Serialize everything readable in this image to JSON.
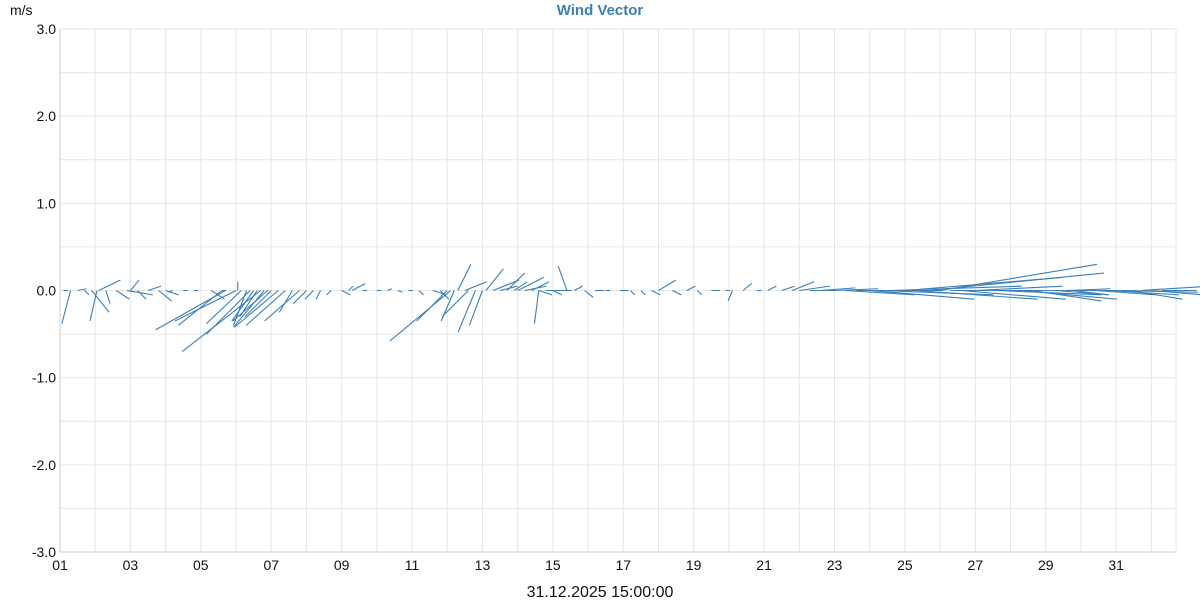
{
  "chart_data": {
    "type": "vector",
    "title": "Wind Vector",
    "ylabel": "m/s",
    "footer_label": "31.12.2025 15:00:00",
    "color": "#3a7fb8",
    "grid": true,
    "xlim": [
      1,
      32.7
    ],
    "ylim": [
      -3.0,
      3.0
    ],
    "x_ticks": [
      "01",
      "03",
      "05",
      "07",
      "09",
      "11",
      "13",
      "15",
      "17",
      "19",
      "21",
      "23",
      "25",
      "27",
      "29",
      "31"
    ],
    "y_ticks": [
      "3.0",
      "2.0",
      "1.0",
      "0.0",
      "-1.0",
      "-2.0",
      "-3.0"
    ],
    "vectors": [
      {
        "x": 1.1,
        "u": 0.05,
        "v": 0.0
      },
      {
        "x": 1.3,
        "u": -0.1,
        "v": -0.38
      },
      {
        "x": 1.5,
        "u": 0.1,
        "v": 0.02
      },
      {
        "x": 1.7,
        "u": 0.05,
        "v": -0.05
      },
      {
        "x": 1.9,
        "u": 0.2,
        "v": -0.25
      },
      {
        "x": 2.05,
        "u": -0.08,
        "v": -0.35
      },
      {
        "x": 2.1,
        "u": 0.25,
        "v": 0.12
      },
      {
        "x": 2.3,
        "u": 0.05,
        "v": -0.15
      },
      {
        "x": 2.6,
        "u": 0.15,
        "v": -0.1
      },
      {
        "x": 2.9,
        "u": 0.3,
        "v": -0.05
      },
      {
        "x": 3.0,
        "u": 0.1,
        "v": 0.12
      },
      {
        "x": 3.2,
        "u": 0.1,
        "v": -0.1
      },
      {
        "x": 3.5,
        "u": 0.15,
        "v": 0.05
      },
      {
        "x": 3.8,
        "u": 0.15,
        "v": -0.12
      },
      {
        "x": 4.0,
        "u": 0.15,
        "v": -0.05
      },
      {
        "x": 4.2,
        "u": -0.05,
        "v": -0.02
      },
      {
        "x": 4.5,
        "u": 0.05,
        "v": 0.0
      },
      {
        "x": 4.8,
        "u": 0.05,
        "v": 0.0
      },
      {
        "x": 5.3,
        "u": 0.15,
        "v": -0.1
      },
      {
        "x": 5.6,
        "u": 0.05,
        "v": 0.0
      },
      {
        "x": 5.6,
        "u": -0.5,
        "v": -0.4
      },
      {
        "x": 5.7,
        "u": -0.8,
        "v": -0.45
      },
      {
        "x": 6.0,
        "u": -0.7,
        "v": -0.35
      },
      {
        "x": 6.05,
        "u": 0.0,
        "v": 0.1
      },
      {
        "x": 6.15,
        "u": -0.4,
        "v": -0.38
      },
      {
        "x": 6.3,
        "u": -0.15,
        "v": -0.4
      },
      {
        "x": 6.4,
        "u": -0.5,
        "v": -0.5
      },
      {
        "x": 6.5,
        "u": -0.25,
        "v": -0.35
      },
      {
        "x": 6.6,
        "u": -0.2,
        "v": -0.3
      },
      {
        "x": 6.7,
        "u": -0.9,
        "v": -0.7
      },
      {
        "x": 6.8,
        "u": -0.35,
        "v": -0.42
      },
      {
        "x": 6.9,
        "u": -0.4,
        "v": -0.35
      },
      {
        "x": 7.0,
        "u": -0.3,
        "v": -0.3
      },
      {
        "x": 7.2,
        "u": -0.5,
        "v": -0.42
      },
      {
        "x": 7.4,
        "u": -0.45,
        "v": -0.4
      },
      {
        "x": 7.6,
        "u": -0.15,
        "v": -0.25
      },
      {
        "x": 7.8,
        "u": -0.4,
        "v": -0.35
      },
      {
        "x": 8.0,
        "u": -0.15,
        "v": -0.15
      },
      {
        "x": 8.2,
        "u": -0.1,
        "v": -0.1
      },
      {
        "x": 8.4,
        "u": -0.05,
        "v": -0.1
      },
      {
        "x": 8.7,
        "u": -0.05,
        "v": -0.05
      },
      {
        "x": 9.0,
        "u": 0.1,
        "v": -0.05
      },
      {
        "x": 9.2,
        "u": 0.05,
        "v": 0.05
      },
      {
        "x": 9.3,
        "u": 0.15,
        "v": 0.08
      },
      {
        "x": 9.6,
        "u": 0.05,
        "v": 0.0
      },
      {
        "x": 10.0,
        "u": 0.05,
        "v": 0.0
      },
      {
        "x": 10.3,
        "u": 0.05,
        "v": 0.02
      },
      {
        "x": 10.6,
        "u": 0.05,
        "v": -0.02
      },
      {
        "x": 10.9,
        "u": 0.05,
        "v": 0.0
      },
      {
        "x": 11.2,
        "u": 0.05,
        "v": -0.05
      },
      {
        "x": 11.6,
        "u": 0.15,
        "v": -0.05
      },
      {
        "x": 11.8,
        "u": 0.1,
        "v": -0.1
      },
      {
        "x": 12.0,
        "u": -0.35,
        "v": -0.35
      },
      {
        "x": 12.1,
        "u": -0.7,
        "v": -0.58
      },
      {
        "x": 12.2,
        "u": -0.15,
        "v": -0.35
      },
      {
        "x": 12.3,
        "u": 0.15,
        "v": 0.3
      },
      {
        "x": 12.5,
        "u": 0.25,
        "v": 0.1
      },
      {
        "x": 12.6,
        "u": -0.3,
        "v": -0.3
      },
      {
        "x": 12.8,
        "u": -0.2,
        "v": -0.48
      },
      {
        "x": 13.0,
        "u": -0.15,
        "v": -0.4
      },
      {
        "x": 13.1,
        "u": 0.2,
        "v": 0.25
      },
      {
        "x": 13.3,
        "u": 0.3,
        "v": 0.12
      },
      {
        "x": 13.5,
        "u": 0.2,
        "v": 0.05
      },
      {
        "x": 13.7,
        "u": 0.2,
        "v": 0.2
      },
      {
        "x": 13.9,
        "u": 0.15,
        "v": 0.1
      },
      {
        "x": 14.0,
        "u": 0.3,
        "v": 0.15
      },
      {
        "x": 14.2,
        "u": 0.25,
        "v": 0.05
      },
      {
        "x": 14.4,
        "u": 0.2,
        "v": 0.1
      },
      {
        "x": 14.6,
        "u": 0.15,
        "v": -0.05
      },
      {
        "x": 14.6,
        "u": -0.05,
        "v": -0.38
      },
      {
        "x": 14.8,
        "u": 0.3,
        "v": 0.0
      },
      {
        "x": 15.0,
        "u": 0.1,
        "v": -0.05
      },
      {
        "x": 15.4,
        "u": -0.1,
        "v": 0.28
      },
      {
        "x": 15.6,
        "u": 0.1,
        "v": 0.05
      },
      {
        "x": 15.9,
        "u": 0.1,
        "v": -0.08
      },
      {
        "x": 16.2,
        "u": 0.1,
        "v": 0.0
      },
      {
        "x": 16.5,
        "u": 0.05,
        "v": 0.0
      },
      {
        "x": 16.9,
        "u": 0.1,
        "v": 0.0
      },
      {
        "x": 17.2,
        "u": 0.05,
        "v": -0.05
      },
      {
        "x": 17.5,
        "u": 0.05,
        "v": -0.05
      },
      {
        "x": 17.8,
        "u": 0.1,
        "v": -0.05
      },
      {
        "x": 18.0,
        "u": 0.2,
        "v": 0.12
      },
      {
        "x": 18.4,
        "u": 0.1,
        "v": -0.05
      },
      {
        "x": 18.8,
        "u": 0.1,
        "v": 0.05
      },
      {
        "x": 19.1,
        "u": 0.05,
        "v": -0.05
      },
      {
        "x": 19.5,
        "u": 0.1,
        "v": 0.0
      },
      {
        "x": 19.9,
        "u": 0.05,
        "v": 0.0
      },
      {
        "x": 20.1,
        "u": -0.05,
        "v": -0.12
      },
      {
        "x": 20.4,
        "u": 0.1,
        "v": 0.08
      },
      {
        "x": 20.8,
        "u": 0.05,
        "v": 0.0
      },
      {
        "x": 21.1,
        "u": 0.1,
        "v": 0.05
      },
      {
        "x": 21.5,
        "u": 0.15,
        "v": 0.05
      },
      {
        "x": 21.8,
        "u": 0.25,
        "v": 0.1
      },
      {
        "x": 22.0,
        "u": 0.35,
        "v": 0.05
      },
      {
        "x": 22.3,
        "u": 0.3,
        "v": 0.0
      },
      {
        "x": 22.6,
        "u": 0.4,
        "v": 0.03
      },
      {
        "x": 23.0,
        "u": 0.5,
        "v": 0.02
      },
      {
        "x": 23.3,
        "u": 0.8,
        "v": -0.05
      },
      {
        "x": 23.6,
        "u": 1.0,
        "v": 0.0
      },
      {
        "x": 24.0,
        "u": 1.2,
        "v": -0.1
      },
      {
        "x": 24.3,
        "u": 1.3,
        "v": -0.05
      },
      {
        "x": 24.6,
        "u": 1.5,
        "v": 0.05
      },
      {
        "x": 25.0,
        "u": 1.8,
        "v": 0.15
      },
      {
        "x": 25.3,
        "u": 1.4,
        "v": -0.1
      },
      {
        "x": 25.7,
        "u": 2.0,
        "v": 0.2
      },
      {
        "x": 26.0,
        "u": 1.8,
        "v": 0.3
      },
      {
        "x": 26.3,
        "u": 1.4,
        "v": 0.0
      },
      {
        "x": 26.6,
        "u": 1.2,
        "v": -0.1
      },
      {
        "x": 27.0,
        "u": 1.0,
        "v": 0.05
      },
      {
        "x": 27.3,
        "u": 0.8,
        "v": 0.0
      },
      {
        "x": 27.6,
        "u": 1.2,
        "v": -0.05
      },
      {
        "x": 28.0,
        "u": 1.0,
        "v": 0.0
      },
      {
        "x": 28.3,
        "u": 1.1,
        "v": -0.1
      },
      {
        "x": 28.6,
        "u": 0.8,
        "v": -0.12
      },
      {
        "x": 29.0,
        "u": 0.9,
        "v": 0.0
      },
      {
        "x": 29.3,
        "u": 0.6,
        "v": -0.05
      },
      {
        "x": 29.6,
        "u": 0.5,
        "v": 0.02
      },
      {
        "x": 29.8,
        "u": 0.4,
        "v": -0.05
      },
      {
        "x": 30.1,
        "u": 0.6,
        "v": 0.0
      },
      {
        "x": 30.4,
        "u": 0.7,
        "v": -0.05
      },
      {
        "x": 30.8,
        "u": 0.8,
        "v": -0.05
      },
      {
        "x": 31.1,
        "u": 0.9,
        "v": -0.02
      },
      {
        "x": 31.4,
        "u": 0.6,
        "v": -0.1
      },
      {
        "x": 31.7,
        "u": 0.8,
        "v": 0.05
      },
      {
        "x": 32.0,
        "u": 0.6,
        "v": -0.05
      },
      {
        "x": 32.3,
        "u": 0.4,
        "v": 0.0
      }
    ]
  }
}
